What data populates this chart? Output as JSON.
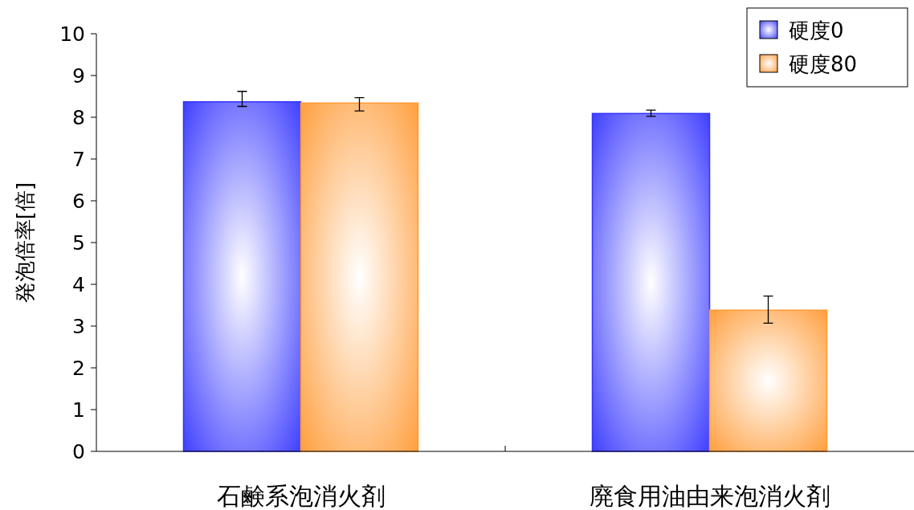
{
  "chart_data": {
    "type": "bar",
    "ylabel": "発泡倍率[倍]",
    "categories": [
      "石鹸系泡消火剤",
      "廃食用油由来泡消火剤"
    ],
    "series": [
      {
        "name": "硬度0",
        "color": "#3333ff",
        "values": [
          8.37,
          8.09
        ],
        "errors": [
          [
            8.26,
            8.62
          ],
          [
            8.02,
            8.17
          ]
        ]
      },
      {
        "name": "硬度80",
        "color": "#ff9933",
        "values": [
          8.34,
          3.38
        ],
        "errors": [
          [
            8.15,
            8.47
          ],
          [
            3.07,
            3.72
          ]
        ]
      }
    ],
    "ylim": [
      0,
      10
    ],
    "yticks": [
      0,
      1,
      2,
      3,
      4,
      5,
      6,
      7,
      8,
      9,
      10
    ],
    "grid": false,
    "legend": "top right"
  }
}
